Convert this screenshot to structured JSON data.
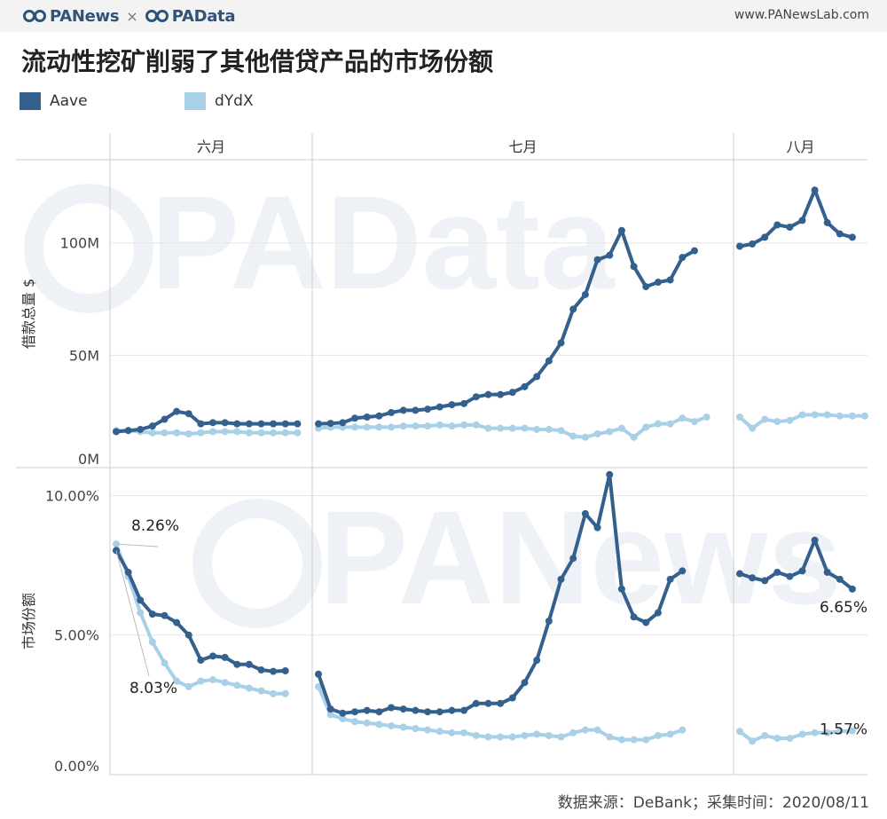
{
  "header": {
    "brand_left": "PANews",
    "separator": "×",
    "brand_right": "PAData",
    "site": "www.PANewsLab.com"
  },
  "title": "流动性挖矿削弱了其他借贷产品的市场份额",
  "legend": [
    {
      "name": "Aave",
      "color": "#34608e"
    },
    {
      "name": "dYdX",
      "color": "#a8d0e6"
    }
  ],
  "source": "数据来源：DeBank；采集时间：2020/08/11",
  "watermarks": [
    "PAData",
    "PANews"
  ],
  "colors": {
    "aave": "#34608e",
    "dydx": "#a8d0e6",
    "grid": "#e6e6e6",
    "divider": "#cccccc"
  },
  "chart_data": [
    {
      "type": "line",
      "panel": "top",
      "ylabel": "借款总量 $",
      "ylim": [
        0,
        137
      ],
      "yticks": [
        {
          "v": 0,
          "label": "0M"
        },
        {
          "v": 50,
          "label": "50M"
        },
        {
          "v": 100,
          "label": "100M"
        }
      ],
      "months": [
        {
          "label": "六月",
          "days": 17
        },
        {
          "label": "七月",
          "days": 35
        },
        {
          "label": "八月",
          "days": 11
        }
      ],
      "series": [
        {
          "name": "Aave",
          "segments": [
            [
              16,
              16.5,
              17,
              18.5,
              21.5,
              25,
              24,
              19.5,
              20,
              20,
              19.5,
              19.5,
              19.5,
              19.5,
              19.5,
              19.5
            ],
            [
              19.5,
              19.7,
              20,
              22,
              22.5,
              23,
              24.5,
              25.5,
              25.5,
              26,
              27,
              28,
              28.5,
              31.5,
              32.5,
              32.5,
              33.5,
              36,
              40.5,
              47.5,
              55.5,
              70.5,
              77,
              92.5,
              94.5,
              105.5,
              89.5,
              80.5,
              82.5,
              83.5,
              93.5,
              96.5
            ],
            [
              98.5,
              99.5,
              102.5,
              108,
              107,
              110,
              123.5,
              109,
              104,
              102.5
            ]
          ]
        },
        {
          "name": "dYdX",
          "segments": [
            [
              16.5,
              16.5,
              16,
              15.5,
              15.5,
              15.5,
              15,
              15.5,
              16,
              16,
              16,
              15.5,
              15.5,
              15.5,
              15.5,
              15.5
            ],
            [
              17.5,
              18,
              18,
              18,
              18,
              18,
              18,
              18.5,
              18.5,
              18.5,
              19,
              18.5,
              19,
              19,
              17.5,
              17.5,
              17.5,
              17.5,
              17,
              17,
              16.5,
              14,
              13.5,
              15,
              16,
              17.5,
              13.5,
              18,
              19.5,
              19.5,
              22,
              20.5,
              22.5
            ],
            [
              22.5,
              17.5,
              21.5,
              20.5,
              21,
              23.5,
              23.5,
              23.5,
              23,
              23,
              23
            ]
          ]
        }
      ]
    },
    {
      "type": "line",
      "panel": "bottom",
      "ylabel": "市场份额",
      "ylim": [
        0,
        11.0
      ],
      "yticks": [
        {
          "v": 0,
          "label": "0.00%"
        },
        {
          "v": 5,
          "label": "5.00%"
        },
        {
          "v": 10,
          "label": "10.00%"
        }
      ],
      "series": [
        {
          "name": "Aave",
          "segments": [
            [
              8.03,
              7.25,
              6.25,
              5.75,
              5.7,
              5.45,
              5.0,
              4.1,
              4.25,
              4.2,
              3.95,
              3.95,
              3.75,
              3.7,
              3.72
            ],
            [
              3.6,
              2.35,
              2.2,
              2.25,
              2.3,
              2.25,
              2.4,
              2.35,
              2.3,
              2.25,
              2.25,
              2.3,
              2.3,
              2.55,
              2.55,
              2.55,
              2.75,
              3.3,
              4.1,
              5.5,
              7.0,
              7.75,
              9.35,
              8.85,
              10.75,
              6.65,
              5.65,
              5.45,
              5.8,
              7.0,
              7.3
            ],
            [
              7.2,
              7.05,
              6.95,
              7.25,
              7.1,
              7.3,
              8.4,
              7.25,
              7.0,
              6.65
            ]
          ]
        },
        {
          "name": "dYdX",
          "segments": [
            [
              8.26,
              7.1,
              5.8,
              4.75,
              4.0,
              3.35,
              3.15,
              3.35,
              3.4,
              3.3,
              3.2,
              3.1,
              3.0,
              2.9,
              2.9
            ],
            [
              3.15,
              2.15,
              2.0,
              1.9,
              1.85,
              1.8,
              1.75,
              1.7,
              1.65,
              1.6,
              1.55,
              1.5,
              1.5,
              1.4,
              1.35,
              1.35,
              1.35,
              1.4,
              1.45,
              1.4,
              1.35,
              1.5,
              1.6,
              1.6,
              1.35,
              1.25,
              1.25,
              1.25,
              1.4,
              1.45,
              1.6
            ],
            [
              1.55,
              1.2,
              1.4,
              1.3,
              1.3,
              1.45,
              1.5,
              1.5,
              1.55,
              1.57
            ]
          ]
        }
      ],
      "annotations": [
        {
          "series": "dYdX",
          "text": "8.26%"
        },
        {
          "series": "Aave",
          "text": "8.03%"
        },
        {
          "series": "Aave",
          "text": "6.65%"
        },
        {
          "series": "dYdX",
          "text": "1.57%"
        }
      ]
    }
  ]
}
